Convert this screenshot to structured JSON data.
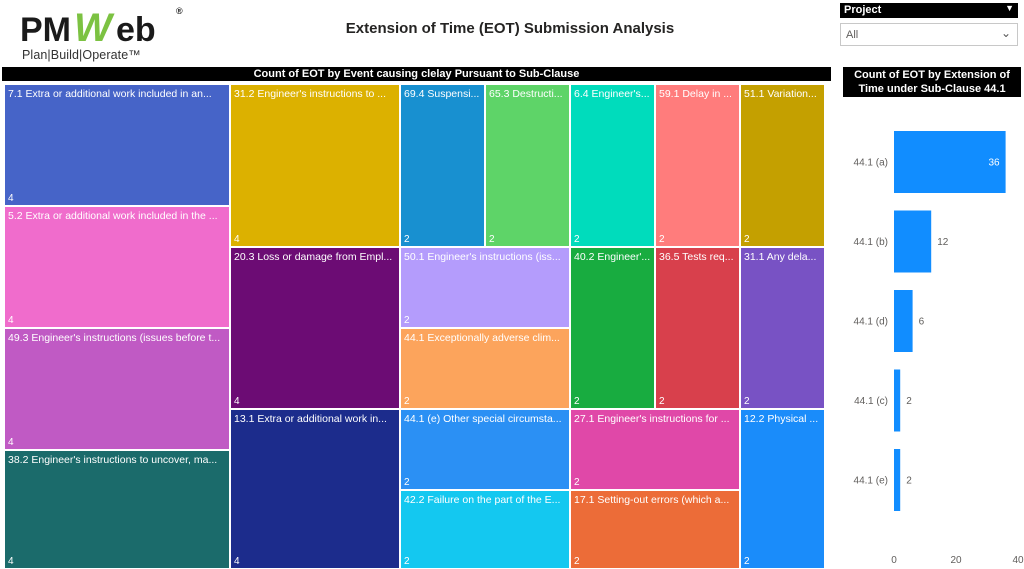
{
  "logo": {
    "tagline": "Plan|Build|Operate™",
    "reg": "®"
  },
  "page_title": "Extension of Time (EOT) Submission Analysis",
  "slicer": {
    "label": "Project",
    "value": "All"
  },
  "colors": {
    "bar": "#118dff",
    "header_bg": "#000000"
  },
  "chart_data": [
    {
      "type": "treemap",
      "title": "Count of EOT by Event causing clelay Pursuant to Sub-Clause",
      "items": [
        {
          "label": "7.1 Extra or additional work included in an...",
          "value": 4,
          "color": "#4664c8"
        },
        {
          "label": "5.2 Extra or additional work included in the ...",
          "value": 4,
          "color": "#f06ccc"
        },
        {
          "label": "49.3 Engineer's instructions (issues before t...",
          "value": 4,
          "color": "#c05ac4"
        },
        {
          "label": "38.2 Engineer's instructions to uncover, ma...",
          "value": 4,
          "color": "#1b6b6b"
        },
        {
          "label": "31.2 Engineer's instructions to ...",
          "value": 4,
          "color": "#dcb100"
        },
        {
          "label": "20.3 Loss or damage from Empl...",
          "value": 4,
          "color": "#6c0c74"
        },
        {
          "label": "13.1 Extra or additional work in...",
          "value": 4,
          "color": "#1c2c8c"
        },
        {
          "label": "69.4 Suspensi...",
          "value": 2,
          "color": "#1890d0"
        },
        {
          "label": "65.3 Destructi...",
          "value": 2,
          "color": "#5ed468"
        },
        {
          "label": "6.4 Engineer's...",
          "value": 2,
          "color": "#00dcbc"
        },
        {
          "label": "59.1 Delay in ...",
          "value": 2,
          "color": "#ff7c7c"
        },
        {
          "label": "51.1 Variation...",
          "value": 2,
          "color": "#c4a000"
        },
        {
          "label": "50.1 Engineer's instructions (iss...",
          "value": 2,
          "color": "#b49cfc"
        },
        {
          "label": "44.1 Exceptionally adverse clim...",
          "value": 2,
          "color": "#fca45c"
        },
        {
          "label": "40.2 Engineer'...",
          "value": 2,
          "color": "#18ac40"
        },
        {
          "label": "36.5 Tests req...",
          "value": 2,
          "color": "#d8404c"
        },
        {
          "label": "31.1 Any dela...",
          "value": 2,
          "color": "#7852c4"
        },
        {
          "label": "44.1 (e) Other special circumsta...",
          "value": 2,
          "color": "#2b90f4"
        },
        {
          "label": "27.1 Engineer's instructions for ...",
          "value": 2,
          "color": "#e048a8"
        },
        {
          "label": "12.2 Physical ...",
          "value": 2,
          "color": "#1a8cfa"
        },
        {
          "label": "42.2 Failure on the part of the E...",
          "value": 2,
          "color": "#14c8f0"
        },
        {
          "label": "17.1 Setting-out errors (which a...",
          "value": 2,
          "color": "#ec6c38"
        }
      ]
    },
    {
      "type": "bar",
      "orientation": "horizontal",
      "title": "Count of EOT by Extension of Time under Sub-Clause 44.1",
      "categories": [
        "44.1 (a)",
        "44.1 (b)",
        "44.1 (d)",
        "44.1 (c)",
        "44.1 (e)"
      ],
      "values": [
        36,
        12,
        6,
        2,
        2
      ],
      "xlim": [
        0,
        40
      ],
      "xticks": [
        0,
        20,
        40
      ]
    }
  ]
}
